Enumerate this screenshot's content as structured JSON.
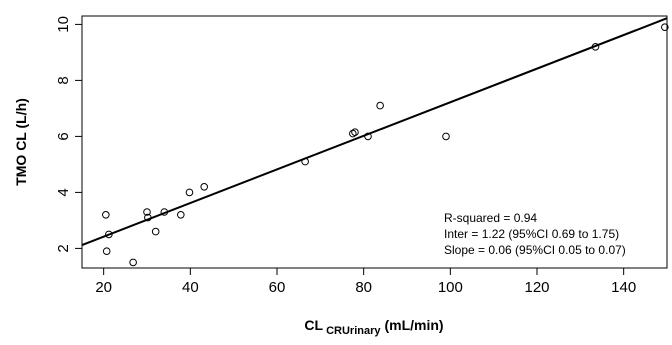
{
  "chart_data": {
    "type": "scatter",
    "xlabel": {
      "main": "CL",
      "subscript": "CRUrinary",
      "unit": "(mL/min)"
    },
    "ylabel": "TMO CL (L/h)",
    "xlim": [
      15,
      150
    ],
    "ylim": [
      1.3,
      10.3
    ],
    "x_ticks": [
      20,
      40,
      60,
      80,
      100,
      120,
      140
    ],
    "y_ticks": [
      2,
      4,
      6,
      8,
      10
    ],
    "grid": false,
    "points": [
      {
        "x": 20.5,
        "y": 3.2
      },
      {
        "x": 20.7,
        "y": 1.9
      },
      {
        "x": 21.2,
        "y": 2.5
      },
      {
        "x": 26.8,
        "y": 1.5
      },
      {
        "x": 30.0,
        "y": 3.3
      },
      {
        "x": 30.2,
        "y": 3.1
      },
      {
        "x": 32.0,
        "y": 2.6
      },
      {
        "x": 34.0,
        "y": 3.3
      },
      {
        "x": 37.8,
        "y": 3.2
      },
      {
        "x": 39.8,
        "y": 4.0
      },
      {
        "x": 43.2,
        "y": 4.2
      },
      {
        "x": 66.5,
        "y": 5.1
      },
      {
        "x": 77.5,
        "y": 6.1
      },
      {
        "x": 78.0,
        "y": 6.15
      },
      {
        "x": 81.0,
        "y": 6.0
      },
      {
        "x": 83.8,
        "y": 7.1
      },
      {
        "x": 99.0,
        "y": 6.0
      },
      {
        "x": 133.5,
        "y": 9.2
      },
      {
        "x": 149.5,
        "y": 9.9
      }
    ],
    "regression": {
      "intercept": 1.22,
      "slope": 0.06
    },
    "annotations": [
      "R-squared = 0.94",
      "Inter = 1.22 (95%CI 0.69 to 1.75)",
      "Slope = 0.06 (95%CI 0.05 to 0.07)"
    ]
  }
}
